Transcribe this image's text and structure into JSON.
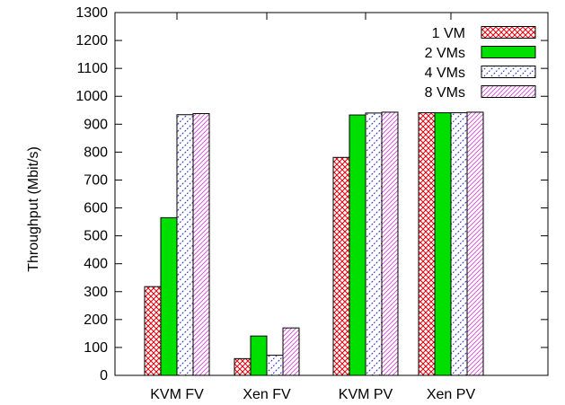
{
  "chart_data": {
    "type": "bar",
    "title": "",
    "xlabel": "",
    "ylabel": "Throughput (Mbit/s)",
    "ylim": [
      0,
      1300
    ],
    "yticks": [
      0,
      100,
      200,
      300,
      400,
      500,
      600,
      700,
      800,
      900,
      1000,
      1100,
      1200,
      1300
    ],
    "categories": [
      "KVM FV",
      "Xen FV",
      "KVM PV",
      "Xen PV"
    ],
    "grid": false,
    "legend_position": "top-right",
    "series": [
      {
        "name": "1 VM",
        "values": [
          318,
          60,
          781,
          941
        ],
        "color": "#e8000b",
        "pattern": "crosshatch"
      },
      {
        "name": "2 VMs",
        "values": [
          565,
          141,
          933,
          941
        ],
        "color": "#00e000",
        "pattern": "solid"
      },
      {
        "name": "4 VMs",
        "values": [
          934,
          72,
          940,
          941
        ],
        "color": "#2030c0",
        "pattern": "sparse-diagonal"
      },
      {
        "name": "8 VMs",
        "values": [
          938,
          170,
          943,
          943
        ],
        "color": "#d040d0",
        "pattern": "dense-diagonal"
      }
    ]
  }
}
